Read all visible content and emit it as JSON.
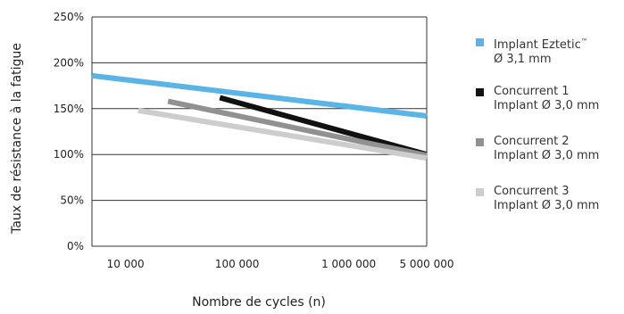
{
  "chart_data": {
    "type": "line",
    "title": "",
    "xlabel": "Nombre de cycles (n)",
    "ylabel": "Taux de résistance à la fatigue",
    "x_scale": "log",
    "x_ticks": [
      10000,
      100000,
      1000000,
      5000000
    ],
    "x_tick_labels": [
      "10 000",
      "100 000",
      "1 000 000",
      "5 000 000"
    ],
    "y_ticks": [
      0,
      50,
      100,
      150,
      200,
      250
    ],
    "y_tick_labels": [
      "0%",
      "50%",
      "100%",
      "150%",
      "200%",
      "250%"
    ],
    "ylim": [
      0,
      250
    ],
    "grid": "horizontal",
    "legend_position": "right",
    "series": [
      {
        "name_line1": "Implant Eztetic",
        "name_mark": "™",
        "name_line2": "Ø 3,1 mm",
        "color": "#5ab4e5",
        "x": [
          5000,
          5000000
        ],
        "y": [
          186,
          142
        ]
      },
      {
        "name_line1": "Concurrent 1",
        "name_line2": "Implant Ø 3,0 mm",
        "color": "#111111",
        "x": [
          70000,
          5000000
        ],
        "y": [
          162,
          100
        ]
      },
      {
        "name_line1": "Concurrent 2",
        "name_line2": "Implant Ø 3,0 mm",
        "color": "#919191",
        "x": [
          24000,
          5000000
        ],
        "y": [
          158,
          99
        ]
      },
      {
        "name_line1": "Concurrent 3",
        "name_line2": "Implant Ø 3,0 mm",
        "color": "#cdcdcd",
        "x": [
          13000,
          5000000
        ],
        "y": [
          148,
          96
        ]
      }
    ]
  }
}
